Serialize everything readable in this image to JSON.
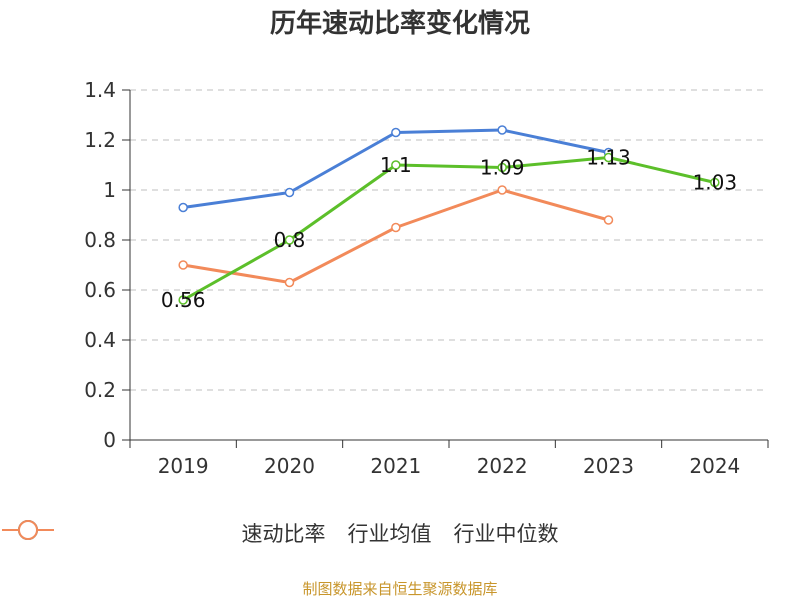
{
  "chart_data": {
    "type": "line",
    "title": "历年速动比率变化情况",
    "categories": [
      "2019",
      "2020",
      "2021",
      "2022",
      "2023",
      "2024"
    ],
    "ylim": [
      0,
      1.4
    ],
    "yticks": [
      "0",
      "0.2",
      "0.4",
      "0.6",
      "0.8",
      "1",
      "1.2",
      "1.4"
    ],
    "grid": true,
    "legend_position": "bottom",
    "series": [
      {
        "name": "速动比率",
        "color": "#5cbf2a",
        "values": [
          0.56,
          0.8,
          1.1,
          1.09,
          1.13,
          1.03
        ],
        "labels": [
          "0.56",
          "0.8",
          "1.1",
          "1.09",
          "1.13",
          "1.03"
        ]
      },
      {
        "name": "行业均值",
        "color": "#4a7fd6",
        "values": [
          0.93,
          0.99,
          1.23,
          1.24,
          1.15,
          null
        ]
      },
      {
        "name": "行业中位数",
        "color": "#f28a5a",
        "values": [
          0.7,
          0.63,
          0.85,
          1.0,
          0.88,
          null
        ]
      }
    ]
  },
  "source_text": "制图数据来自恒生聚源数据库"
}
